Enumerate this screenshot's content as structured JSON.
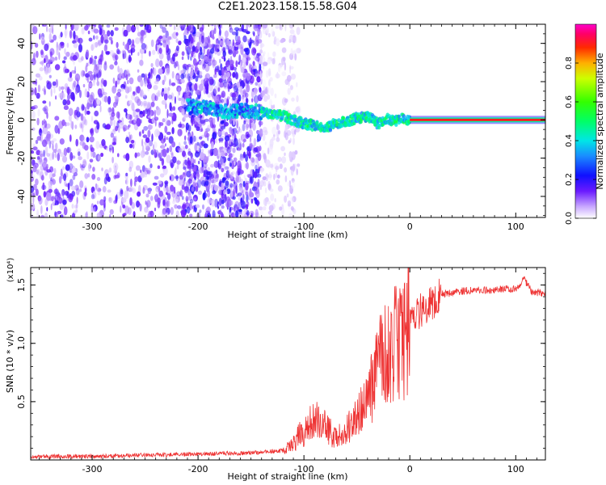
{
  "title": "C2E1.2023.158.15.58.G04",
  "chart_data": [
    {
      "type": "heatmap",
      "title": "C2E1.2023.158.15.58.G04",
      "xlabel": "Height of straight line (km)",
      "ylabel": "Frequency (Hz)",
      "xlim": [
        -358,
        128
      ],
      "ylim": [
        -51,
        50
      ],
      "x_ticks": [
        "-300",
        "-200",
        "-100",
        "0",
        "100"
      ],
      "y_ticks": [
        "-40",
        "-20",
        "0",
        "20",
        "40"
      ],
      "colorbar": {
        "label": "Normalized spectral amplitude",
        "range": [
          0,
          1
        ],
        "ticks": [
          "0.0",
          "0.2",
          "0.4",
          "0.6",
          "0.8"
        ]
      },
      "regions": [
        {
          "x_range": [
            -358,
            -215
          ],
          "f_range": [
            -51,
            50
          ],
          "amplitude": 0.12,
          "pattern": "diffuse"
        },
        {
          "x_range": [
            -215,
            -140
          ],
          "f_range": [
            -51,
            50
          ],
          "amplitude": 0.14,
          "pattern": "diffuse"
        },
        {
          "x_range": [
            -140,
            -105
          ],
          "f_range": [
            -51,
            50
          ],
          "amplitude": 0.04,
          "pattern": "faint"
        }
      ],
      "ridge": [
        {
          "x": -210,
          "f": 7
        },
        {
          "x": -190,
          "f": 6
        },
        {
          "x": -170,
          "f": 4
        },
        {
          "x": -150,
          "f": 5
        },
        {
          "x": -140,
          "f": 4
        },
        {
          "x": -130,
          "f": 3
        },
        {
          "x": -120,
          "f": 2
        },
        {
          "x": -110,
          "f": 0
        },
        {
          "x": -100,
          "f": -2
        },
        {
          "x": -90,
          "f": -3
        },
        {
          "x": -80,
          "f": -4
        },
        {
          "x": -70,
          "f": -2
        },
        {
          "x": -60,
          "f": -1
        },
        {
          "x": -50,
          "f": 1
        },
        {
          "x": -40,
          "f": 2
        },
        {
          "x": -30,
          "f": -2
        },
        {
          "x": -22,
          "f": 1
        },
        {
          "x": -15,
          "f": -1
        },
        {
          "x": -8,
          "f": 1
        },
        {
          "x": 0,
          "f": 0
        },
        {
          "x": 128,
          "f": 0
        }
      ]
    },
    {
      "type": "line",
      "xlabel": "Height of straight line (km)",
      "ylabel": "SNR (10 * v/v)",
      "y_multiplier": "(x10⁴)",
      "xlim": [
        -358,
        128
      ],
      "ylim": [
        0,
        16500
      ],
      "x_ticks": [
        "-300",
        "-200",
        "-100",
        "0",
        "100"
      ],
      "y_ticks": [
        "0.5",
        "1.0",
        "1.5"
      ],
      "color": "#ee3333",
      "x": [
        -358,
        -300,
        -250,
        -200,
        -150,
        -120,
        -110,
        -100,
        -90,
        -80,
        -70,
        -60,
        -50,
        -40,
        -30,
        -20,
        -10,
        0,
        10,
        20,
        30,
        50,
        80,
        100,
        108,
        115,
        128
      ],
      "y": [
        300,
        300,
        400,
        500,
        600,
        800,
        1500,
        2500,
        3500,
        2800,
        1800,
        2500,
        3500,
        5000,
        8000,
        9000,
        10500,
        12000,
        12800,
        13500,
        14200,
        14500,
        14600,
        14700,
        15500,
        14400,
        14300
      ]
    }
  ]
}
